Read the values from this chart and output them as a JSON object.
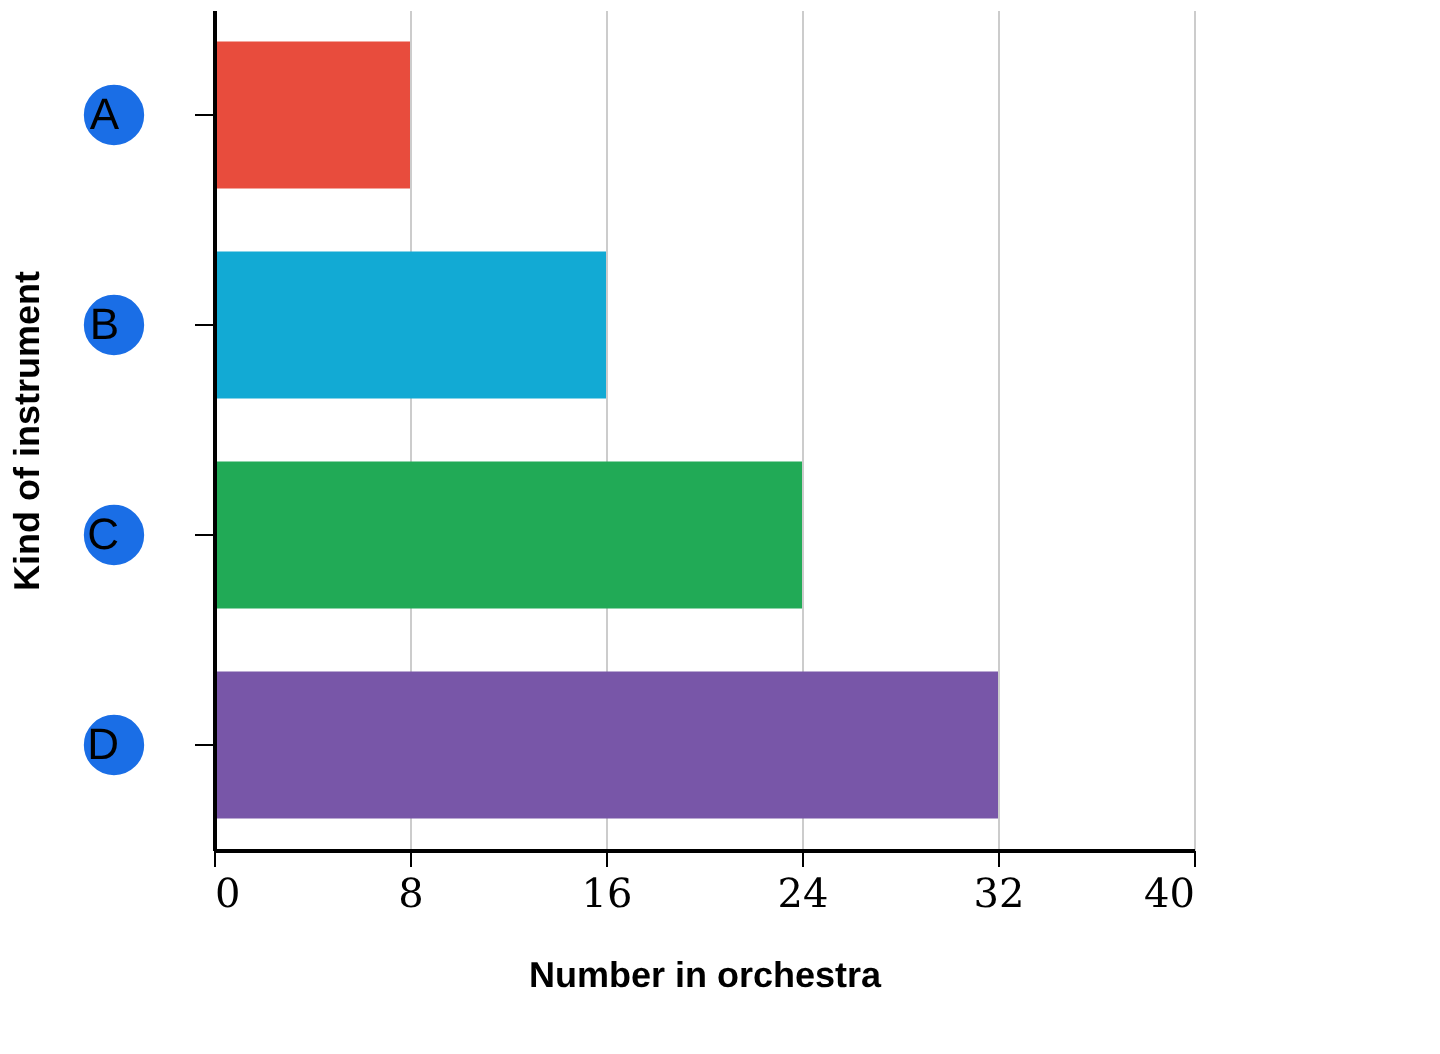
{
  "chart_data": {
    "type": "bar",
    "orientation": "horizontal",
    "xlabel": "Number in orchestra",
    "ylabel": "Kind of instrument",
    "categories": [
      "A",
      "B",
      "C",
      "D"
    ],
    "values": [
      8,
      16,
      24,
      32
    ],
    "colors": [
      "#e84c3d",
      "#12aad4",
      "#21aa56",
      "#7856a8"
    ],
    "xlim": [
      0,
      40
    ],
    "xticks": [
      0,
      8,
      16,
      24,
      32,
      40
    ],
    "grid": "x"
  }
}
